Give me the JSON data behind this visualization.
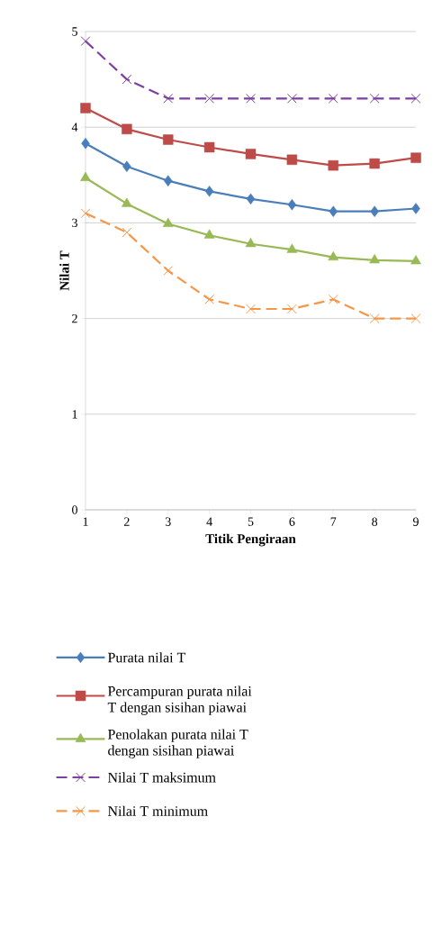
{
  "chart_data": {
    "type": "line",
    "xlabel": "Titik Pengiraan",
    "ylabel": "Nilai T",
    "categories": [
      "1",
      "2",
      "3",
      "4",
      "5",
      "6",
      "7",
      "8",
      "9"
    ],
    "ylim": [
      0,
      5
    ],
    "yticks": [
      0,
      1,
      2,
      3,
      4,
      5
    ],
    "grid": "y",
    "legend": "bottom",
    "series": [
      {
        "name": "Purata nilai T",
        "color": "#4a7ebb",
        "marker": "diamond",
        "line_style": "solid",
        "values": [
          3.83,
          3.59,
          3.44,
          3.33,
          3.25,
          3.19,
          3.12,
          3.12,
          3.15
        ]
      },
      {
        "name": "Percampuran purata nilai T dengan sisihan piawai",
        "color": "#be4b48",
        "marker": "square",
        "line_style": "solid",
        "values": [
          4.2,
          3.98,
          3.87,
          3.79,
          3.72,
          3.66,
          3.6,
          3.62,
          3.68
        ]
      },
      {
        "name": "Penolakan purata nilai T dengan sisihan piawai",
        "color": "#98b954",
        "marker": "triangle",
        "line_style": "solid",
        "values": [
          3.47,
          3.2,
          2.99,
          2.87,
          2.78,
          2.72,
          2.64,
          2.61,
          2.6
        ]
      },
      {
        "name": "Nilai T maksimum",
        "color": "#7d3fa0",
        "marker": "cross",
        "line_style": "dashed",
        "values": [
          4.9,
          4.5,
          4.3,
          4.3,
          4.3,
          4.3,
          4.3,
          4.3,
          4.3
        ]
      },
      {
        "name": "Nilai T minimum",
        "color": "#f79646",
        "marker": "cross",
        "line_style": "dashed",
        "values": [
          3.1,
          2.9,
          2.5,
          2.2,
          2.1,
          2.1,
          2.2,
          2.0,
          2.0
        ]
      }
    ]
  }
}
